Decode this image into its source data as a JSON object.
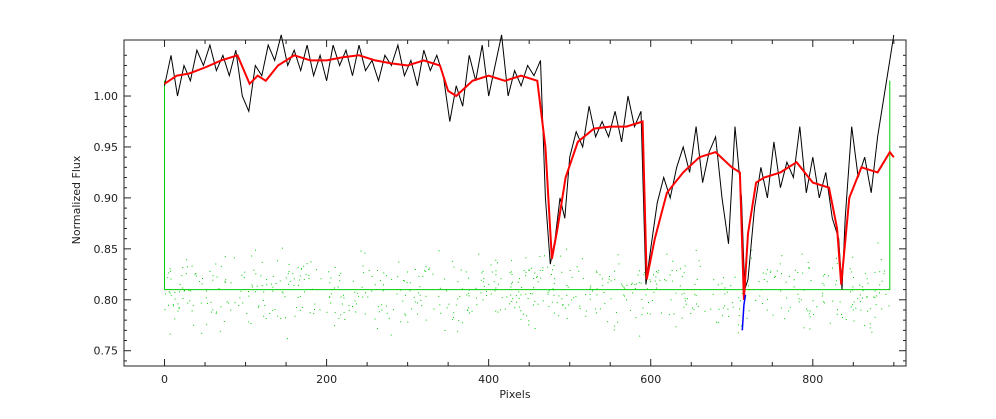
{
  "chart_data": {
    "type": "line",
    "title": "",
    "xlabel": "Pixels",
    "ylabel": "Normalized Flux",
    "xlim": [
      -50,
      915
    ],
    "ylim": [
      0.735,
      1.055
    ],
    "x_ticks": [
      0,
      200,
      400,
      600,
      800
    ],
    "y_ticks": [
      0.75,
      0.8,
      0.85,
      0.9,
      0.95,
      1.0
    ],
    "y_tick_labels": [
      "0.75",
      "0.80",
      "0.85",
      "0.90",
      "0.95",
      "1.00"
    ],
    "grid": false,
    "legend": "none",
    "colors": {
      "observed": "#000000",
      "model": "#ff0000",
      "residuals": "#00cc00",
      "box": "#00cc00",
      "feature": "#0000ff"
    },
    "series": [
      {
        "key": "model",
        "x": [
          0,
          15,
          30,
          50,
          70,
          90,
          105,
          115,
          125,
          140,
          160,
          180,
          200,
          220,
          240,
          260,
          280,
          300,
          320,
          340,
          350,
          360,
          380,
          400,
          420,
          440,
          460,
          470,
          478,
          485,
          495,
          510,
          530,
          550,
          570,
          590,
          595,
          605,
          620,
          640,
          660,
          680,
          700,
          710,
          715,
          720,
          730,
          740,
          760,
          780,
          800,
          820,
          830,
          835,
          845,
          860,
          880,
          895,
          900
        ],
        "y": [
          1.012,
          1.02,
          1.022,
          1.028,
          1.035,
          1.04,
          1.012,
          1.02,
          1.015,
          1.03,
          1.04,
          1.035,
          1.035,
          1.038,
          1.04,
          1.035,
          1.032,
          1.03,
          1.035,
          1.03,
          1.005,
          1.0,
          1.015,
          1.02,
          1.015,
          1.02,
          1.015,
          0.95,
          0.84,
          0.87,
          0.92,
          0.955,
          0.968,
          0.97,
          0.97,
          0.975,
          0.82,
          0.86,
          0.905,
          0.925,
          0.94,
          0.945,
          0.93,
          0.925,
          0.8,
          0.865,
          0.915,
          0.92,
          0.925,
          0.935,
          0.915,
          0.91,
          0.87,
          0.815,
          0.9,
          0.93,
          0.925,
          0.945,
          0.94
        ]
      },
      {
        "key": "observed",
        "x": [
          0,
          8,
          16,
          24,
          32,
          40,
          48,
          56,
          64,
          72,
          80,
          88,
          96,
          104,
          112,
          120,
          128,
          136,
          144,
          152,
          160,
          168,
          176,
          184,
          192,
          200,
          208,
          216,
          224,
          232,
          240,
          248,
          256,
          264,
          272,
          280,
          288,
          296,
          304,
          312,
          320,
          328,
          336,
          344,
          352,
          360,
          368,
          376,
          384,
          392,
          400,
          408,
          416,
          424,
          432,
          440,
          448,
          456,
          464,
          470,
          476,
          482,
          488,
          494,
          500,
          508,
          516,
          524,
          532,
          540,
          548,
          556,
          564,
          572,
          580,
          588,
          594,
          600,
          608,
          616,
          624,
          632,
          640,
          648,
          656,
          664,
          672,
          680,
          688,
          696,
          704,
          712,
          716,
          720,
          728,
          736,
          744,
          752,
          760,
          768,
          776,
          784,
          792,
          800,
          808,
          816,
          824,
          832,
          836,
          840,
          848,
          856,
          864,
          872,
          880,
          888,
          896,
          900
        ],
        "y": [
          1.01,
          1.04,
          1.0,
          1.03,
          1.015,
          1.045,
          1.03,
          1.05,
          1.025,
          1.04,
          1.02,
          1.045,
          1.0,
          0.985,
          1.03,
          1.02,
          1.05,
          1.035,
          1.06,
          1.03,
          1.045,
          1.025,
          1.05,
          1.02,
          1.04,
          1.015,
          1.05,
          1.03,
          1.045,
          1.02,
          1.05,
          1.025,
          1.035,
          1.015,
          1.04,
          1.03,
          1.05,
          1.02,
          1.035,
          1.01,
          1.045,
          1.025,
          1.04,
          1.02,
          0.975,
          1.01,
          0.99,
          1.04,
          1.015,
          1.05,
          1.0,
          1.03,
          1.06,
          1.0,
          1.025,
          1.01,
          1.03,
          1.02,
          1.035,
          0.9,
          0.835,
          0.86,
          0.9,
          0.88,
          0.94,
          0.965,
          0.95,
          0.99,
          0.96,
          0.975,
          0.96,
          0.985,
          0.955,
          1.0,
          0.97,
          0.985,
          0.815,
          0.85,
          0.895,
          0.92,
          0.9,
          0.93,
          0.95,
          0.925,
          0.97,
          0.915,
          0.945,
          0.96,
          0.9,
          0.855,
          0.97,
          0.9,
          0.81,
          0.82,
          0.89,
          0.93,
          0.9,
          0.955,
          0.91,
          0.935,
          0.92,
          0.97,
          0.905,
          0.94,
          0.9,
          0.925,
          0.88,
          0.86,
          0.81,
          0.88,
          0.97,
          0.92,
          0.94,
          0.905,
          0.96,
          1.0,
          1.04,
          1.06
        ]
      },
      {
        "key": "feature",
        "x": [
          713,
          715,
          717
        ],
        "y": [
          0.77,
          0.795,
          0.805
        ]
      }
    ],
    "box": {
      "x": [
        0,
        895
      ],
      "y_top": 1.015,
      "y_bottom": 0.81
    }
  }
}
